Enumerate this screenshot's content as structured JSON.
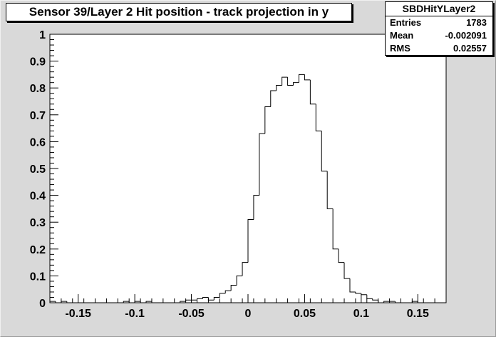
{
  "title": "Sensor 39/Layer 2 Hit position - track projection in y",
  "stats": {
    "name": "SBDHitYLayer2",
    "rows": [
      {
        "label": "Entries",
        "value": "1783"
      },
      {
        "label": "Mean",
        "value": "-0.002091"
      },
      {
        "label": "RMS",
        "value": "0.02557"
      }
    ]
  },
  "chart_data": {
    "type": "histogram",
    "title": "Sensor 39/Layer 2 Hit position - track projection in y",
    "xlabel": "",
    "ylabel": "",
    "xlim": [
      -0.175,
      0.175
    ],
    "ylim": [
      0,
      1
    ],
    "bin_width": 0.005,
    "bin_start": -0.175,
    "values": [
      0.005,
      0.0,
      0.005,
      0.0,
      0.0,
      0.0,
      0.0,
      0.0,
      0.0,
      0.0,
      0.0,
      0.0,
      0.0,
      0.005,
      0.0,
      0.005,
      0.0,
      0.005,
      0.0,
      0.0,
      0.0,
      0.0,
      0.0,
      0.005,
      0.01,
      0.01,
      0.015,
      0.02,
      0.01,
      0.02,
      0.035,
      0.045,
      0.065,
      0.1,
      0.15,
      0.31,
      0.4,
      0.63,
      0.73,
      0.79,
      0.81,
      0.84,
      0.81,
      0.82,
      0.85,
      0.83,
      0.74,
      0.64,
      0.49,
      0.35,
      0.2,
      0.15,
      0.09,
      0.04,
      0.035,
      0.03,
      0.015,
      0.01,
      0.0,
      0.005,
      0.005,
      0.0,
      0.0,
      0.0,
      0.005,
      0.0,
      0.0,
      0.0,
      0.0,
      0.0
    ],
    "xticks": [
      -0.15,
      -0.1,
      -0.05,
      0,
      0.05,
      0.1,
      0.15
    ],
    "xtick_labels": [
      "-0.15",
      "-0.1",
      "-0.05",
      "0",
      "0.05",
      "0.1",
      "0.15"
    ],
    "yticks": [
      0,
      0.1,
      0.2,
      0.3,
      0.4,
      0.5,
      0.6,
      0.7,
      0.8,
      0.9,
      1
    ],
    "ytick_labels": [
      "0",
      "0.1",
      "0.2",
      "0.3",
      "0.4",
      "0.5",
      "0.6",
      "0.7",
      "0.8",
      "0.9",
      "1"
    ],
    "grid": false,
    "legend": "none"
  }
}
